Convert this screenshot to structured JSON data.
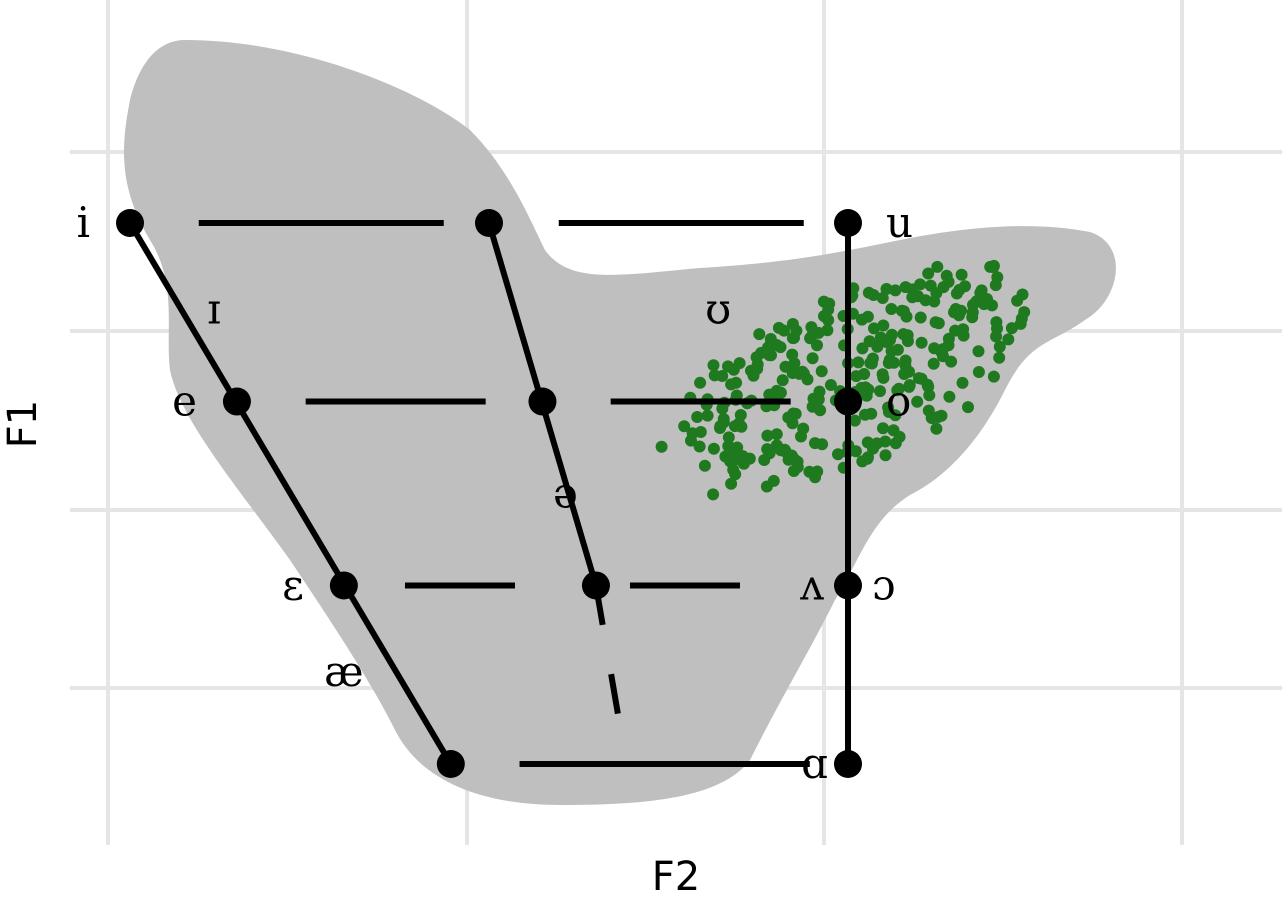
{
  "chart_data": {
    "type": "scatter",
    "title": "",
    "xlabel": "F2",
    "ylabel": "F1",
    "grid": true,
    "legend": "none",
    "colors": {
      "background_region": "#bfbfbf",
      "trapezoid": "#000000",
      "tokens": "#1f7a1f",
      "grid": "#e5e5e5"
    },
    "vowels": [
      {
        "symbol": "i",
        "x": 0.06,
        "y": 0.0,
        "point": true
      },
      {
        "symbol": "",
        "x": 0.53,
        "y": 0.0,
        "point": true
      },
      {
        "symbol": "u",
        "x": 1.0,
        "y": 0.0,
        "point": true
      },
      {
        "symbol": "ɪ",
        "x": 0.17,
        "y": 0.16,
        "point": false
      },
      {
        "symbol": "ʊ",
        "x": 0.83,
        "y": 0.16,
        "point": false
      },
      {
        "symbol": "e",
        "x": 0.2,
        "y": 0.33,
        "point": true
      },
      {
        "symbol": "",
        "x": 0.6,
        "y": 0.33,
        "point": true
      },
      {
        "symbol": "o",
        "x": 1.0,
        "y": 0.33,
        "point": true
      },
      {
        "symbol": "ə",
        "x": 0.63,
        "y": 0.5,
        "point": false
      },
      {
        "symbol": "ɛ",
        "x": 0.34,
        "y": 0.67,
        "point": true
      },
      {
        "symbol": "",
        "x": 0.67,
        "y": 0.67,
        "point": true
      },
      {
        "symbol": "ʌ",
        "x": 1.0,
        "y": 0.67,
        "point": true
      },
      {
        "symbol": "æ",
        "x": 0.34,
        "y": 0.83,
        "point": false
      },
      {
        "symbol": "",
        "x": 0.48,
        "y": 1.0,
        "point": true
      },
      {
        "symbol": "ɑ",
        "x": 1.0,
        "y": 1.0,
        "point": true
      }
    ],
    "highlight_vowel": {
      "symbol": "ɔ",
      "color": "#1f7a1f",
      "x": 1.0,
      "y": 0.67
    },
    "tokens_series": {
      "name": "",
      "count": 300,
      "center": {
        "x": 1.0,
        "y": 0.29
      },
      "spread": {
        "x": 0.22,
        "y": 0.17
      },
      "seed": 7
    }
  }
}
